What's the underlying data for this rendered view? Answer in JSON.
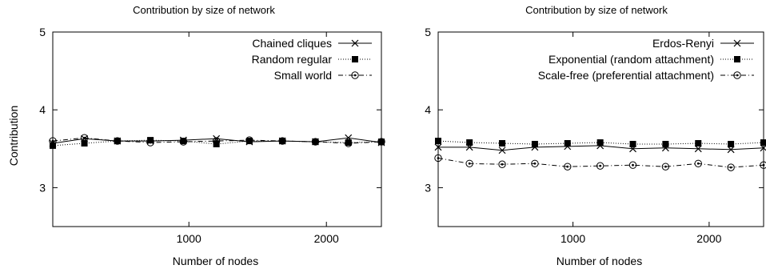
{
  "chart_data": [
    {
      "type": "line",
      "title": "Contribution by size of network",
      "xlabel": "Number of nodes",
      "ylabel": "Contribution",
      "xlim": [
        10,
        2400
      ],
      "ylim": [
        2.5,
        5
      ],
      "xticks": [
        1000,
        2000
      ],
      "yticks": [
        3,
        4,
        5
      ],
      "grid": false,
      "legend": "top-right",
      "series": [
        {
          "name": "Chained cliques",
          "marker": "x",
          "dash": "solid",
          "x": [
            10,
            240,
            480,
            720,
            960,
            1200,
            1440,
            1680,
            1920,
            2160,
            2400
          ],
          "y": [
            3.57,
            3.63,
            3.6,
            3.6,
            3.61,
            3.63,
            3.59,
            3.6,
            3.59,
            3.64,
            3.58
          ]
        },
        {
          "name": "Random regular",
          "marker": "square-filled",
          "dash": "dotted",
          "x": [
            10,
            240,
            480,
            720,
            960,
            1200,
            1440,
            1680,
            1920,
            2160,
            2400
          ],
          "y": [
            3.54,
            3.57,
            3.6,
            3.61,
            3.6,
            3.56,
            3.6,
            3.6,
            3.59,
            3.58,
            3.59
          ]
        },
        {
          "name": "Small world",
          "marker": "circle-dot",
          "dash": "dashdot",
          "x": [
            10,
            240,
            480,
            720,
            960,
            1200,
            1440,
            1680,
            1920,
            2160,
            2400
          ],
          "y": [
            3.6,
            3.64,
            3.6,
            3.58,
            3.59,
            3.6,
            3.61,
            3.6,
            3.59,
            3.57,
            3.59
          ]
        }
      ]
    },
    {
      "type": "line",
      "title": "Contribution by size of network",
      "xlabel": "Number of nodes",
      "ylabel": "",
      "xlim": [
        10,
        2400
      ],
      "ylim": [
        2.5,
        5
      ],
      "xticks": [
        1000,
        2000
      ],
      "yticks": [
        3,
        4,
        5
      ],
      "grid": false,
      "legend": "top-right",
      "series": [
        {
          "name": "Erdos-Renyi",
          "marker": "x",
          "dash": "solid",
          "x": [
            10,
            240,
            480,
            720,
            960,
            1200,
            1440,
            1680,
            1920,
            2160,
            2400
          ],
          "y": [
            3.52,
            3.52,
            3.48,
            3.52,
            3.53,
            3.54,
            3.5,
            3.51,
            3.5,
            3.49,
            3.51
          ]
        },
        {
          "name": "Exponential (random attachment)",
          "marker": "square-filled",
          "dash": "dotted",
          "x": [
            10,
            240,
            480,
            720,
            960,
            1200,
            1440,
            1680,
            1920,
            2160,
            2400
          ],
          "y": [
            3.6,
            3.58,
            3.57,
            3.56,
            3.57,
            3.58,
            3.56,
            3.56,
            3.57,
            3.56,
            3.58
          ]
        },
        {
          "name": "Scale-free (preferential attachment)",
          "marker": "circle-dot",
          "dash": "dashdot",
          "x": [
            10,
            240,
            480,
            720,
            960,
            1200,
            1440,
            1680,
            1920,
            2160,
            2400
          ],
          "y": [
            3.38,
            3.31,
            3.3,
            3.31,
            3.27,
            3.28,
            3.29,
            3.27,
            3.31,
            3.26,
            3.29
          ]
        }
      ]
    }
  ]
}
